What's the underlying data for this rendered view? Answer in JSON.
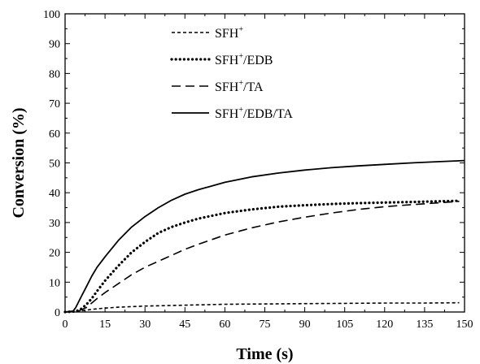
{
  "chart_data": {
    "type": "line",
    "title": "",
    "xlabel": "Time (s)",
    "ylabel": "Conversion (%)",
    "xlim": [
      0,
      150
    ],
    "ylim": [
      0,
      100
    ],
    "x_ticks": [
      0,
      15,
      30,
      45,
      60,
      75,
      90,
      105,
      120,
      135,
      150
    ],
    "y_ticks": [
      0,
      10,
      20,
      30,
      40,
      50,
      60,
      70,
      80,
      90,
      100
    ],
    "grid": false,
    "legend_position": "top-center",
    "series": [
      {
        "name": "SFH+",
        "legend_base": "SFH",
        "legend_sup": "+",
        "legend_rest": "",
        "line_style": "short-dash",
        "color": "#000000",
        "x": [
          0,
          3,
          5,
          8,
          10,
          15,
          20,
          30,
          45,
          60,
          75,
          90,
          105,
          120,
          135,
          148
        ],
        "y": [
          0,
          0.1,
          0.3,
          0.6,
          0.9,
          1.3,
          1.6,
          2.0,
          2.3,
          2.6,
          2.7,
          2.8,
          2.9,
          3.0,
          3.0,
          3.1
        ]
      },
      {
        "name": "SFH+/EDB",
        "legend_base": "SFH",
        "legend_sup": "+",
        "legend_rest": "/EDB",
        "line_style": "dotted",
        "color": "#000000",
        "x": [
          0,
          4,
          6,
          8,
          10,
          12,
          15,
          20,
          25,
          30,
          35,
          40,
          45,
          50,
          60,
          70,
          80,
          90,
          100,
          110,
          120,
          130,
          140,
          148
        ],
        "y": [
          0,
          0.2,
          1.0,
          2.5,
          4.5,
          7.0,
          10.5,
          15.5,
          20,
          23.5,
          26.5,
          28.5,
          30,
          31.3,
          33.2,
          34.4,
          35.3,
          35.8,
          36.2,
          36.5,
          36.7,
          36.9,
          37.1,
          37.3
        ]
      },
      {
        "name": "SFH+/TA",
        "legend_base": "SFH",
        "legend_sup": "+",
        "legend_rest": "/TA",
        "line_style": "long-dash",
        "color": "#000000",
        "x": [
          0,
          5,
          8,
          10,
          12,
          15,
          20,
          25,
          30,
          35,
          40,
          45,
          50,
          60,
          70,
          80,
          90,
          100,
          110,
          120,
          130,
          140,
          148
        ],
        "y": [
          0,
          0.3,
          1.5,
          3.0,
          4.5,
          6.5,
          9.5,
          12.5,
          15,
          17,
          19,
          21,
          22.7,
          25.8,
          28.2,
          30.2,
          31.8,
          33.2,
          34.4,
          35.3,
          36,
          36.6,
          37.1
        ]
      },
      {
        "name": "SFH+/EDB/TA",
        "legend_base": "SFH",
        "legend_sup": "+",
        "legend_rest": "/EDB/TA",
        "line_style": "solid",
        "color": "#000000",
        "x": [
          0,
          3,
          4,
          6,
          8,
          10,
          12,
          15,
          20,
          25,
          30,
          35,
          40,
          45,
          50,
          60,
          70,
          80,
          90,
          100,
          110,
          120,
          130,
          140,
          150
        ],
        "y": [
          0,
          0.3,
          1.5,
          5,
          8.5,
          12,
          15,
          18.5,
          24,
          28.5,
          32,
          35,
          37.5,
          39.5,
          41,
          43.5,
          45.3,
          46.6,
          47.6,
          48.4,
          49,
          49.5,
          50,
          50.4,
          50.8
        ]
      }
    ]
  }
}
